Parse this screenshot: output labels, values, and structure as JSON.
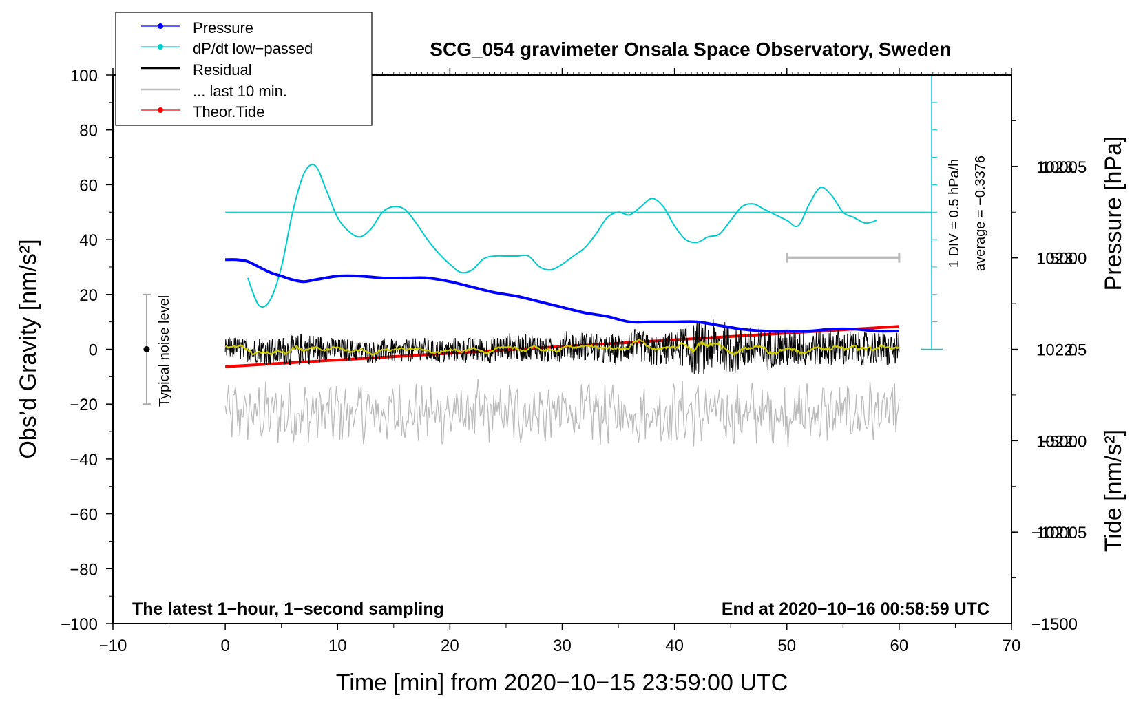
{
  "chart_data": {
    "type": "line",
    "title": "SCG_054 gravimeter Onsala Space Observatory, Sweden",
    "xlabel": "Time [min] from 2020−10−15 23:59:00 UTC",
    "ylabel_left": "Obs’d Gravity [nm/s²]",
    "ylabel_right_top": "Pressure [hPa]",
    "ylabel_right_bottom": "Tide [nm/s²]",
    "xlim": [
      -10,
      70
    ],
    "ylim": [
      -100,
      100
    ],
    "pressure_lim": [
      1021.0,
      1024.0
    ],
    "tide_lim": [
      -1500,
      1500
    ],
    "x_ticks": [
      -10,
      0,
      10,
      20,
      30,
      40,
      50,
      60,
      70
    ],
    "x_tick_labels": [
      "−10",
      "0",
      "10",
      "20",
      "30",
      "40",
      "50",
      "60",
      "70"
    ],
    "y_ticks": [
      -100,
      -80,
      -60,
      -40,
      -20,
      0,
      20,
      40,
      60,
      80,
      100
    ],
    "y_tick_labels": [
      "−100",
      "−80",
      "−60",
      "−40",
      "−20",
      "0",
      "20",
      "40",
      "60",
      "80",
      "100"
    ],
    "pressure_ticks": [
      1021.5,
      1022.0,
      1022.5,
      1023.0,
      1023.5
    ],
    "pressure_tick_labels": [
      "1021.5",
      "1022.0",
      "1022.5",
      "1023.0",
      "1023.5"
    ],
    "tide_ticks": [
      -1500,
      -1000,
      -500,
      0,
      500,
      1000
    ],
    "tide_tick_labels": [
      "−1500",
      "−1000",
      "−500",
      "0",
      "500",
      "1000"
    ],
    "legend": [
      {
        "label": "Pressure",
        "color": "#0000ff",
        "marker": true
      },
      {
        "label": "dP/dt low−passed",
        "color": "#00cccc",
        "marker": true
      },
      {
        "label": "Residual",
        "color": "#000000",
        "marker": false
      },
      {
        "label": "... last 10 min.",
        "color": "#bbbbbb",
        "marker": false
      },
      {
        "label": "Theor.Tide",
        "color": "#ff0000",
        "marker": true
      }
    ],
    "series": [
      {
        "name": "Pressure",
        "axis": "pressure",
        "color": "#0000ff",
        "x": [
          0,
          1,
          2,
          3,
          4,
          5,
          6,
          7,
          8,
          10,
          12,
          14,
          16,
          18,
          20,
          22,
          24,
          26,
          28,
          30,
          32,
          34,
          36,
          38,
          40,
          42,
          44,
          46,
          48,
          50,
          52,
          54,
          56,
          58,
          60
        ],
        "y": [
          1022.99,
          1022.99,
          1022.98,
          1022.95,
          1022.92,
          1022.9,
          1022.88,
          1022.87,
          1022.88,
          1022.9,
          1022.9,
          1022.89,
          1022.89,
          1022.89,
          1022.87,
          1022.84,
          1022.81,
          1022.79,
          1022.76,
          1022.73,
          1022.7,
          1022.68,
          1022.65,
          1022.65,
          1022.65,
          1022.65,
          1022.63,
          1022.61,
          1022.6,
          1022.6,
          1022.6,
          1022.61,
          1022.61,
          1022.6,
          1022.6
        ]
      },
      {
        "name": "dP/dt low−passed",
        "axis": "rate",
        "color": "#00cccc",
        "average": -0.3376,
        "scale_label": "1 DIV = 0.5 hPa/h",
        "average_label": "average = −0.3376",
        "x": [
          2,
          3,
          4,
          5,
          6,
          7,
          8,
          9,
          10,
          11,
          12,
          13,
          14,
          15,
          16,
          17,
          18,
          19,
          20,
          21,
          22,
          23,
          24,
          25,
          26,
          27,
          28,
          29,
          30,
          31,
          32,
          33,
          34,
          35,
          36,
          37,
          38,
          39,
          40,
          41,
          42,
          43,
          44,
          45,
          46,
          47,
          48,
          49,
          50,
          51,
          52,
          53,
          54,
          55,
          56,
          57,
          58
        ],
        "y": [
          26,
          16,
          18,
          30,
          50,
          64,
          67,
          58,
          48,
          43,
          41,
          44,
          50,
          52,
          51,
          46,
          40,
          35,
          31,
          28,
          29,
          33,
          34,
          34,
          34,
          34,
          30,
          29,
          31,
          34,
          37,
          42,
          48,
          50,
          49,
          52,
          55,
          52,
          45,
          40,
          39,
          41,
          42,
          47,
          52,
          53,
          51,
          49,
          47,
          45,
          53,
          59,
          56,
          50,
          48,
          46,
          47
        ]
      },
      {
        "name": "Residual",
        "axis": "gravity",
        "color": "#000000",
        "x_range": [
          0,
          60
        ],
        "amplitude_envelope": [
          [
            0,
            4
          ],
          [
            7,
            6
          ],
          [
            10,
            4
          ],
          [
            30,
            5
          ],
          [
            40,
            6
          ],
          [
            42,
            10
          ],
          [
            50,
            7
          ],
          [
            60,
            6
          ]
        ]
      },
      {
        "name": "Residual smoothed",
        "axis": "gravity",
        "color": "#cccc00",
        "x_range": [
          0,
          60
        ]
      },
      {
        "name": "... last 10 min.",
        "axis": "tide",
        "color": "#bbbbbb",
        "x_range": [
          0,
          60
        ],
        "center": -350,
        "span_minutes": [
          50,
          60
        ]
      },
      {
        "name": "Theor.Tide",
        "axis": "tide",
        "color": "#ff0000",
        "x": [
          0,
          60
        ],
        "y": [
          -95,
          125
        ]
      }
    ],
    "noise_bar": {
      "x": -7,
      "y_low": -20,
      "y_high": 20,
      "label": "Typical noise level"
    },
    "annotations": {
      "bottom_left": "The latest 1−hour, 1−second sampling",
      "bottom_right": "End at 2020−10−16 00:58:59 UTC"
    }
  }
}
